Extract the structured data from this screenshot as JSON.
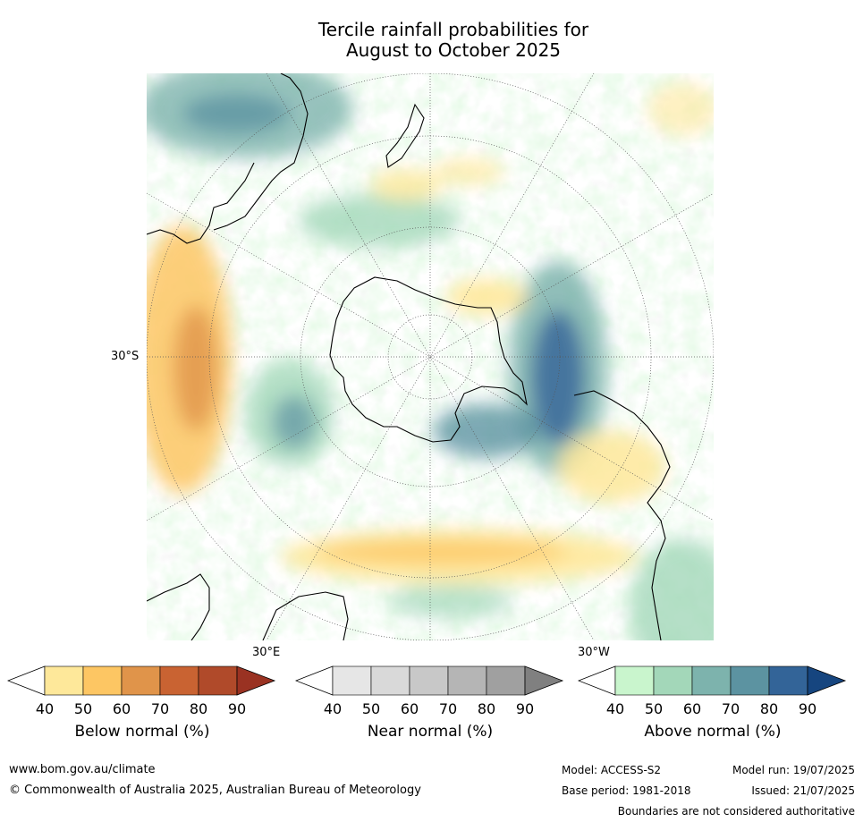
{
  "title_line1": "Tercile rainfall probabilities for",
  "title_line2": "August to October 2025",
  "map": {
    "lat_label": "30°S",
    "lon_label_east": "30°E",
    "lon_label_west": "30°W"
  },
  "colorbars": [
    {
      "id": "below",
      "title": "Below normal (%)",
      "ticks": [
        "40",
        "50",
        "60",
        "70",
        "80",
        "90"
      ],
      "colors": [
        "#ffffff",
        "#fee89a",
        "#fdc663",
        "#e0944a",
        "#c96332",
        "#b04a2a",
        "#9a3222"
      ]
    },
    {
      "id": "near",
      "title": "Near normal (%)",
      "ticks": [
        "40",
        "50",
        "60",
        "70",
        "80",
        "90"
      ],
      "colors": [
        "#ffffff",
        "#e6e6e6",
        "#d9d9d9",
        "#c8c8c8",
        "#b5b5b5",
        "#a0a0a0",
        "#808080"
      ]
    },
    {
      "id": "above",
      "title": "Above normal (%)",
      "ticks": [
        "40",
        "50",
        "60",
        "70",
        "80",
        "90"
      ],
      "colors": [
        "#ffffff",
        "#c9f5cd",
        "#a3d7b9",
        "#7db3ad",
        "#5c93a1",
        "#336498",
        "#16457f"
      ]
    }
  ],
  "footer": {
    "website": "www.bom.gov.au/climate",
    "copyright": "© Commonwealth of Australia 2025, Australian Bureau of Meteorology",
    "model": "Model: ACCESS-S2",
    "base_period": "Base period: 1981-2018",
    "model_run": "Model run: 19/07/2025",
    "issued": "Issued: 21/07/2025",
    "disclaimer": "Boundaries are not considered authoritative"
  }
}
